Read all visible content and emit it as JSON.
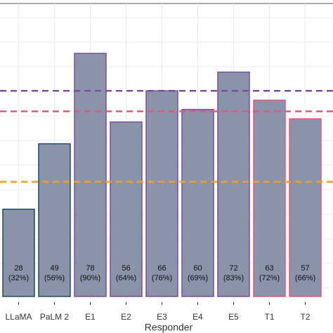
{
  "chart_data": {
    "type": "bar",
    "categories": [
      "LLaMA",
      "PaLM 2",
      "E1",
      "E2",
      "E3",
      "E4",
      "E5",
      "T1",
      "T2"
    ],
    "values": [
      28,
      49,
      78,
      56,
      66,
      60,
      72,
      63,
      57
    ],
    "percent_labels": [
      "(32%)",
      "(56%)",
      "(90%)",
      "(64%)",
      "(76%)",
      "(69%)",
      "(83%)",
      "(72%)",
      "(66%)"
    ],
    "fill": "#8a93a9",
    "outline_colors": [
      "#1d4f5e",
      "#1d4f5e",
      "#7a4f9c",
      "#7a4f9c",
      "#7a4f9c",
      "#7a4f9c",
      "#7a4f9c",
      "#df5a7e",
      "#df5a7e"
    ],
    "reference_lines": [
      {
        "value": 66,
        "color": "#7a4f9c"
      },
      {
        "value": 59.4,
        "color": "#e4577d"
      },
      {
        "value": 36.8,
        "color": "#f2a024"
      }
    ],
    "x_label": "Responder",
    "ylim": [
      0,
      94
    ],
    "grid": true
  }
}
